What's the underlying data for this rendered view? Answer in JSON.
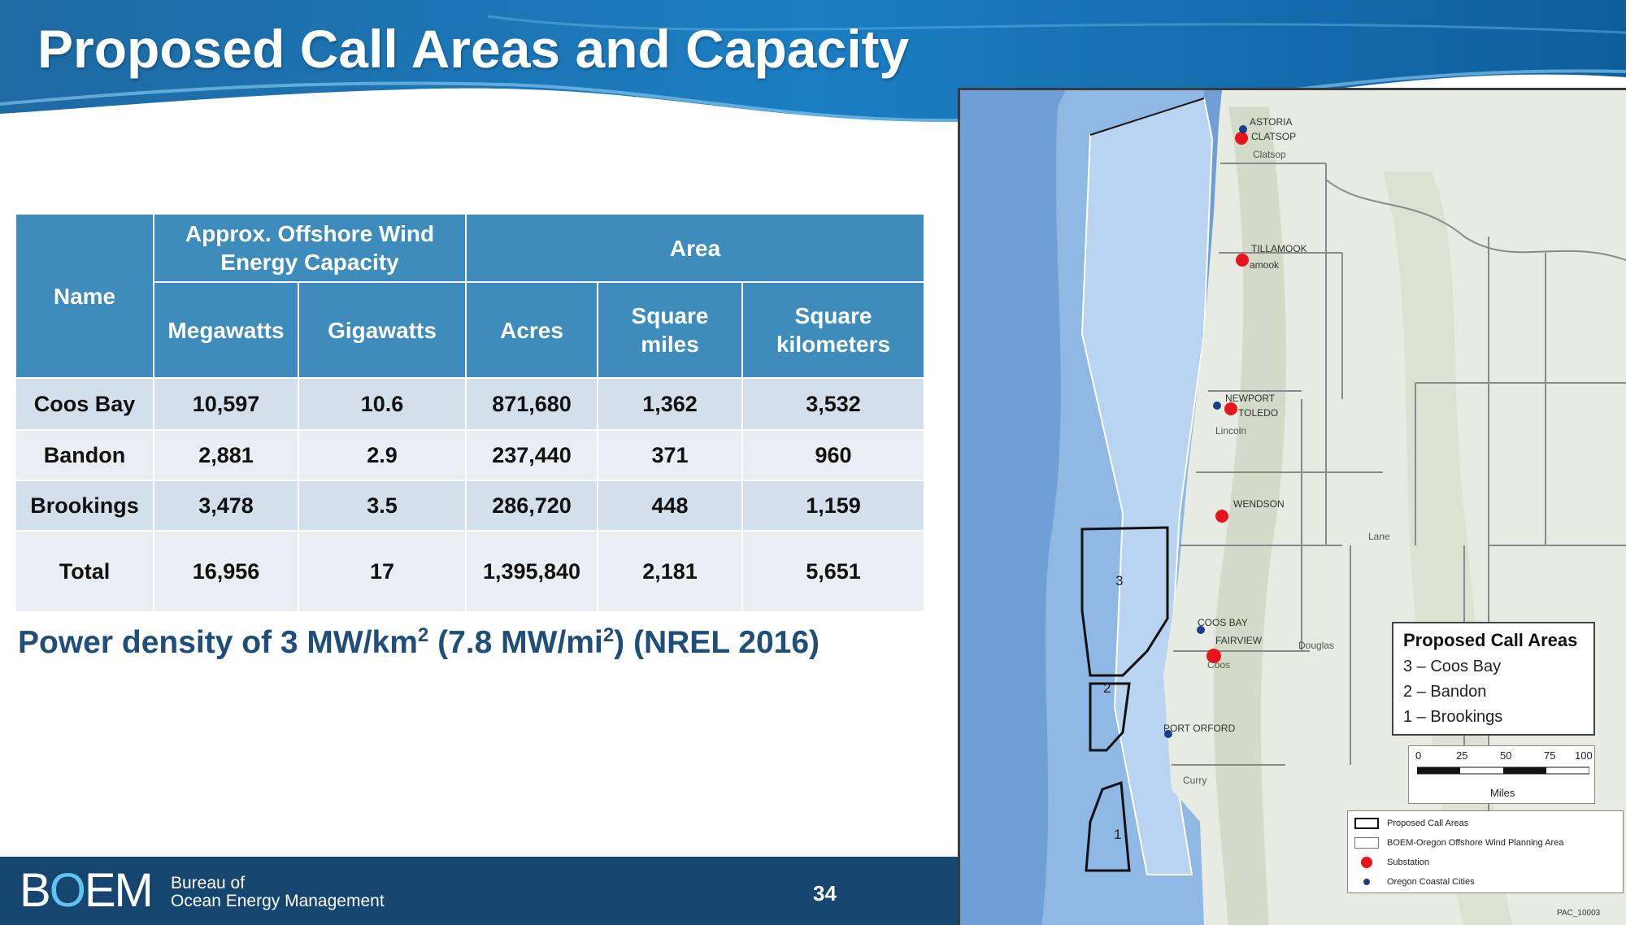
{
  "slide": {
    "title": "Proposed Call Areas and Capacity",
    "page_number": "34"
  },
  "table": {
    "header_name": "Name",
    "header_capacity": "Approx. Offshore Wind Energy Capacity",
    "header_area": "Area",
    "sub_megawatts": "Megawatts",
    "sub_gigawatts": "Gigawatts",
    "sub_acres": "Acres",
    "sub_square_miles": "Square miles",
    "sub_square_kilometers": "Square kilometers",
    "rows": [
      {
        "name": "Coos Bay",
        "megawatts": "10,597",
        "gigawatts": "10.6",
        "acres": "871,680",
        "square_miles": "1,362",
        "square_kilometers": "3,532"
      },
      {
        "name": "Bandon",
        "megawatts": "2,881",
        "gigawatts": "2.9",
        "acres": "237,440",
        "square_miles": "371",
        "square_kilometers": "960"
      },
      {
        "name": "Brookings",
        "megawatts": "3,478",
        "gigawatts": "3.5",
        "acres": "286,720",
        "square_miles": "448",
        "square_kilometers": "1,159"
      },
      {
        "name": "Total",
        "megawatts": "16,956",
        "gigawatts": "17",
        "acres": "1,395,840",
        "square_miles": "2,181",
        "square_kilometers": "5,651"
      }
    ]
  },
  "density_note": {
    "prefix": "Power density of 3 MW/km",
    "sup1": "2",
    "middle": " (7.8 MW/mi",
    "sup2": "2",
    "suffix": ") (NREL 2016)"
  },
  "footer": {
    "logo_b": "B",
    "logo_o": "O",
    "logo_em": "EM",
    "bureau_line1": "Bureau of",
    "bureau_line2": "Ocean Energy Management"
  },
  "map": {
    "cities": {
      "astoria": "ASTORIA",
      "clatsop_city": "CLATSOP",
      "tillamook": "TILLAMOOK",
      "tillamook_sub": "amook",
      "newport": "NEWPORT",
      "toledo": "TOLEDO",
      "wendson": "WENDSON",
      "coos_bay": "COOS BAY",
      "fairview": "FAIRVIEW",
      "port_orford": "PORT ORFORD"
    },
    "counties": {
      "clatsop": "Clatsop",
      "lincoln": "Lincoln",
      "lane": "Lane",
      "douglas": "Douglas",
      "coos": "Coos",
      "curry": "Curry"
    },
    "area_numbers": [
      "3",
      "2",
      "1"
    ],
    "legend": {
      "title": "Proposed Call Areas",
      "items": [
        "3 – Coos Bay",
        "2 – Bandon",
        "1 – Brookings"
      ]
    },
    "scale": {
      "ticks": [
        "0",
        "25",
        "50",
        "75",
        "100"
      ],
      "unit": "Miles"
    },
    "symbols": {
      "call_areas": "Proposed Call Areas",
      "planning_area": "BOEM-Oregon Offshore Wind Planning Area",
      "substation": "Substation",
      "coastal_cities": "Oregon Coastal Cities"
    },
    "map_id": "PAC_10003",
    "colors": {
      "substation": "#e8141c",
      "coastal_city": "#1a3e8c",
      "planning_area": "#b8d4f0",
      "ocean": "#6f9fd6",
      "land": "#e8ebe2"
    }
  },
  "colors": {
    "table_header": "#3d8cbc",
    "footer": "#16456f",
    "density_text": "#1f4e79"
  }
}
